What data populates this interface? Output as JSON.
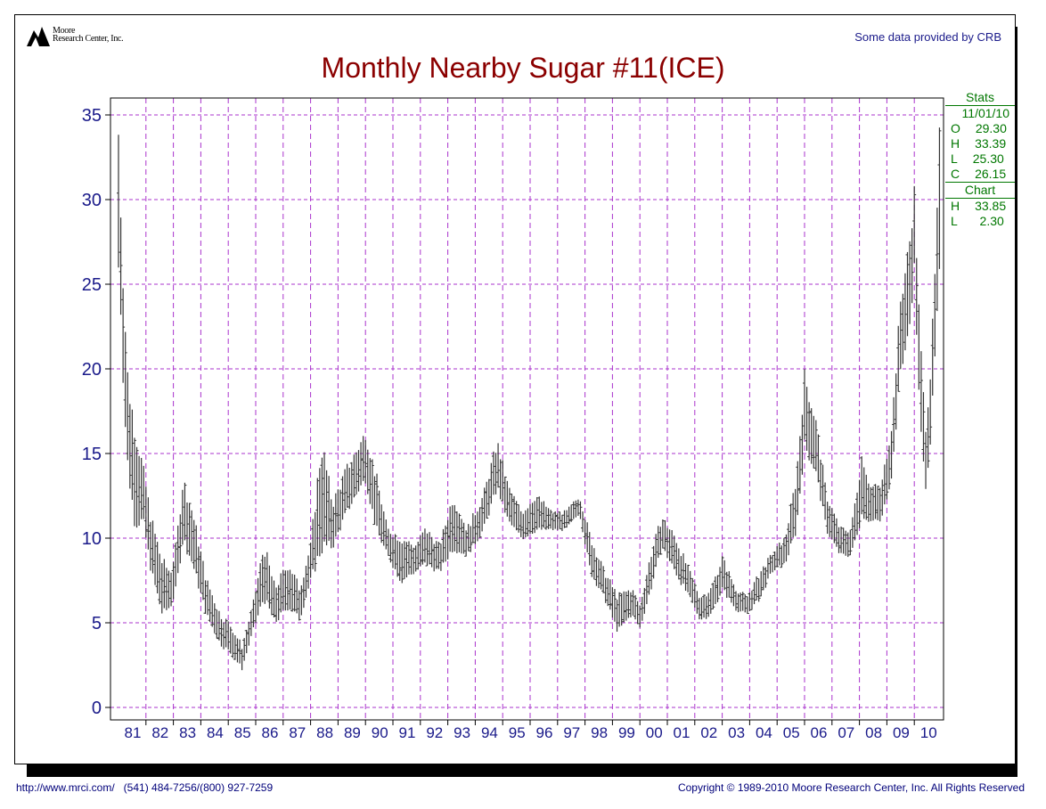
{
  "header": {
    "logo_line1": "Moore",
    "logo_line2": "Research Center, Inc.",
    "credit": "Some data provided by CRB"
  },
  "stats": {
    "title": "Stats",
    "date": "11/01/10",
    "rows": [
      {
        "label": "O",
        "value": "29.30"
      },
      {
        "label": "H",
        "value": "33.39"
      },
      {
        "label": "L",
        "value": "25.30"
      },
      {
        "label": "C",
        "value": "26.15"
      }
    ],
    "chart_title": "Chart",
    "chart_rows": [
      {
        "label": "H",
        "value": "33.85"
      },
      {
        "label": "L",
        "value": "2.30"
      }
    ]
  },
  "footer": {
    "left": "http://www.mrci.com/   (541) 484-7256/(800) 927-7259",
    "right": "Copyright © 1989-2010 Moore Research Center, Inc. All Rights Reserved"
  },
  "colors": {
    "title": "#8b0000",
    "axis_text": "#1a1a8a",
    "grid": "#aa33cc",
    "bars": "#333333",
    "stats": "#007700"
  },
  "chart_data": {
    "type": "ohlc",
    "title": "Monthly Nearby Sugar #11(ICE)",
    "xlabel": "",
    "ylabel": "",
    "ylim": [
      0,
      35
    ],
    "yticks": [
      0,
      5,
      10,
      15,
      20,
      25,
      30,
      35
    ],
    "x_categories": [
      "81",
      "82",
      "83",
      "84",
      "85",
      "86",
      "87",
      "88",
      "89",
      "90",
      "91",
      "92",
      "93",
      "94",
      "95",
      "96",
      "97",
      "98",
      "99",
      "00",
      "01",
      "02",
      "03",
      "04",
      "05",
      "06",
      "07",
      "08",
      "09",
      "10"
    ],
    "grid": true,
    "series_note": "monthly high-low bars, approximate",
    "anchors": [
      {
        "t": 1981.0,
        "h": 33.85,
        "l": 26.0
      },
      {
        "t": 1981.1,
        "h": 28.5,
        "l": 23.0
      },
      {
        "t": 1981.2,
        "h": 24.0,
        "l": 18.0
      },
      {
        "t": 1981.35,
        "h": 19.0,
        "l": 14.0
      },
      {
        "t": 1981.6,
        "h": 16.5,
        "l": 11.0
      },
      {
        "t": 1981.9,
        "h": 14.0,
        "l": 11.0
      },
      {
        "t": 1982.2,
        "h": 11.0,
        "l": 8.0
      },
      {
        "t": 1982.6,
        "h": 8.5,
        "l": 5.5
      },
      {
        "t": 1982.9,
        "h": 8.0,
        "l": 6.0
      },
      {
        "t": 1983.1,
        "h": 9.5,
        "l": 7.0
      },
      {
        "t": 1983.35,
        "h": 13.4,
        "l": 10.0
      },
      {
        "t": 1983.7,
        "h": 11.5,
        "l": 8.5
      },
      {
        "t": 1984.2,
        "h": 7.5,
        "l": 5.5
      },
      {
        "t": 1984.7,
        "h": 5.5,
        "l": 3.8
      },
      {
        "t": 1985.1,
        "h": 4.8,
        "l": 3.2
      },
      {
        "t": 1985.5,
        "h": 3.6,
        "l": 2.3
      },
      {
        "t": 1985.9,
        "h": 6.0,
        "l": 4.5
      },
      {
        "t": 1986.3,
        "h": 9.5,
        "l": 6.5
      },
      {
        "t": 1986.7,
        "h": 7.0,
        "l": 5.0
      },
      {
        "t": 1987.2,
        "h": 8.5,
        "l": 6.0
      },
      {
        "t": 1987.6,
        "h": 7.0,
        "l": 5.2
      },
      {
        "t": 1988.0,
        "h": 9.5,
        "l": 7.5
      },
      {
        "t": 1988.4,
        "h": 15.5,
        "l": 9.5
      },
      {
        "t": 1988.8,
        "h": 12.0,
        "l": 9.5
      },
      {
        "t": 1989.3,
        "h": 14.0,
        "l": 11.5
      },
      {
        "t": 1989.8,
        "h": 15.5,
        "l": 13.0
      },
      {
        "t": 1990.0,
        "h": 16.2,
        "l": 13.5
      },
      {
        "t": 1990.4,
        "h": 13.5,
        "l": 10.5
      },
      {
        "t": 1990.8,
        "h": 10.5,
        "l": 9.0
      },
      {
        "t": 1991.3,
        "h": 10.0,
        "l": 7.5
      },
      {
        "t": 1991.8,
        "h": 9.5,
        "l": 8.0
      },
      {
        "t": 1992.2,
        "h": 10.5,
        "l": 8.5
      },
      {
        "t": 1992.7,
        "h": 9.5,
        "l": 8.0
      },
      {
        "t": 1993.2,
        "h": 12.5,
        "l": 9.5
      },
      {
        "t": 1993.7,
        "h": 10.5,
        "l": 9.0
      },
      {
        "t": 1994.3,
        "h": 12.5,
        "l": 10.5
      },
      {
        "t": 1994.8,
        "h": 15.6,
        "l": 13.0
      },
      {
        "t": 1995.2,
        "h": 13.0,
        "l": 11.0
      },
      {
        "t": 1995.7,
        "h": 11.5,
        "l": 10.0
      },
      {
        "t": 1996.2,
        "h": 12.5,
        "l": 10.5
      },
      {
        "t": 1996.8,
        "h": 11.5,
        "l": 10.5
      },
      {
        "t": 1997.3,
        "h": 11.5,
        "l": 10.5
      },
      {
        "t": 1997.8,
        "h": 12.5,
        "l": 11.5
      },
      {
        "t": 1998.2,
        "h": 10.0,
        "l": 8.0
      },
      {
        "t": 1998.7,
        "h": 8.0,
        "l": 6.5
      },
      {
        "t": 1999.2,
        "h": 6.5,
        "l": 4.5
      },
      {
        "t": 1999.7,
        "h": 7.0,
        "l": 5.5
      },
      {
        "t": 2000.0,
        "h": 6.0,
        "l": 4.7
      },
      {
        "t": 2000.4,
        "h": 9.0,
        "l": 7.0
      },
      {
        "t": 2000.8,
        "h": 11.2,
        "l": 9.5
      },
      {
        "t": 2001.3,
        "h": 10.0,
        "l": 8.0
      },
      {
        "t": 2001.8,
        "h": 8.0,
        "l": 6.5
      },
      {
        "t": 2002.2,
        "h": 6.5,
        "l": 5.2
      },
      {
        "t": 2002.6,
        "h": 7.0,
        "l": 5.5
      },
      {
        "t": 2003.0,
        "h": 8.8,
        "l": 7.0
      },
      {
        "t": 2003.5,
        "h": 7.0,
        "l": 5.8
      },
      {
        "t": 2003.9,
        "h": 6.5,
        "l": 5.5
      },
      {
        "t": 2004.4,
        "h": 8.0,
        "l": 6.5
      },
      {
        "t": 2004.8,
        "h": 9.0,
        "l": 8.0
      },
      {
        "t": 2005.3,
        "h": 10.0,
        "l": 8.5
      },
      {
        "t": 2005.7,
        "h": 13.5,
        "l": 10.5
      },
      {
        "t": 2006.0,
        "h": 19.5,
        "l": 15.5
      },
      {
        "t": 2006.4,
        "h": 17.0,
        "l": 14.0
      },
      {
        "t": 2006.8,
        "h": 12.5,
        "l": 10.5
      },
      {
        "t": 2007.3,
        "h": 10.5,
        "l": 9.0
      },
      {
        "t": 2007.7,
        "h": 10.5,
        "l": 9.0
      },
      {
        "t": 2008.1,
        "h": 15.0,
        "l": 11.5
      },
      {
        "t": 2008.4,
        "h": 13.0,
        "l": 11.0
      },
      {
        "t": 2008.8,
        "h": 13.0,
        "l": 11.0
      },
      {
        "t": 2009.2,
        "h": 17.0,
        "l": 14.0
      },
      {
        "t": 2009.5,
        "h": 24.0,
        "l": 20.0
      },
      {
        "t": 2009.8,
        "h": 27.0,
        "l": 22.0
      },
      {
        "t": 2010.0,
        "h": 30.4,
        "l": 26.0
      },
      {
        "t": 2010.2,
        "h": 22.0,
        "l": 17.0
      },
      {
        "t": 2010.4,
        "h": 16.5,
        "l": 13.0
      },
      {
        "t": 2010.6,
        "h": 20.0,
        "l": 16.0
      },
      {
        "t": 2010.8,
        "h": 27.0,
        "l": 22.0
      },
      {
        "t": 2010.92,
        "h": 33.39,
        "l": 25.3
      }
    ]
  }
}
